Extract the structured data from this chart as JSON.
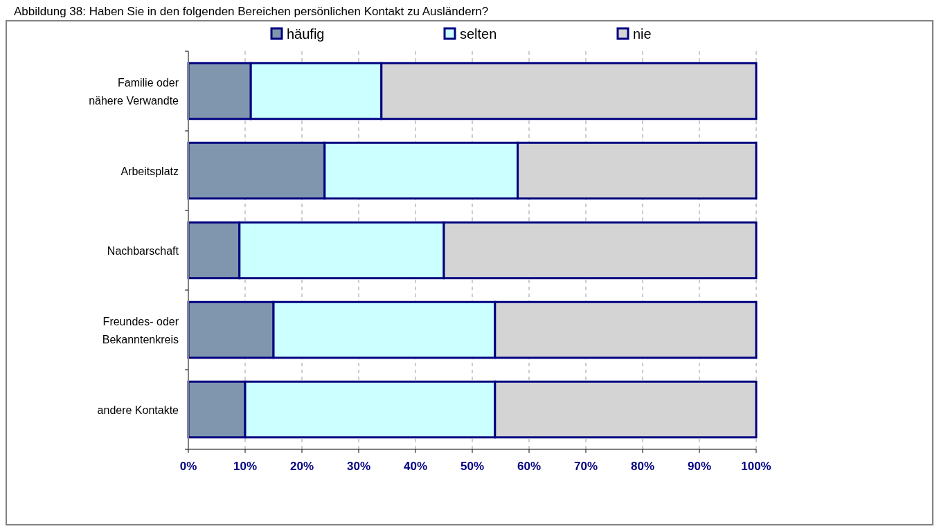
{
  "chart_data": {
    "type": "bar",
    "orientation": "horizontal",
    "stacked": true,
    "title": "Abbildung 38: Haben Sie in den folgenden Bereichen persönlichen Kontakt zu Ausländern?",
    "categories": [
      "Familie oder nähere Verwandte",
      "Arbeitsplatz",
      "Nachbarschaft",
      "Freundes- oder Bekanntenkreis",
      "andere Kontakte"
    ],
    "series": [
      {
        "name": "häufig",
        "color": "#8096ae",
        "values": [
          11,
          24,
          9,
          15,
          10
        ]
      },
      {
        "name": "selten",
        "color": "#ccffff",
        "values": [
          23,
          34,
          36,
          39,
          44
        ]
      },
      {
        "name": "nie",
        "color": "#d4d4d4",
        "values": [
          66,
          42,
          55,
          46,
          46
        ]
      }
    ],
    "xlim": [
      0,
      100
    ],
    "xticks": [
      {
        "value": 0,
        "label": "0%"
      },
      {
        "value": 10,
        "label": "10%"
      },
      {
        "value": 20,
        "label": "20%"
      },
      {
        "value": 30,
        "label": "30%"
      },
      {
        "value": 40,
        "label": "40%"
      },
      {
        "value": 50,
        "label": "50%"
      },
      {
        "value": 60,
        "label": "60%"
      },
      {
        "value": 70,
        "label": "70%"
      },
      {
        "value": 80,
        "label": "80%"
      },
      {
        "value": 90,
        "label": "90%"
      },
      {
        "value": 100,
        "label": "100%"
      }
    ],
    "grid": "x",
    "legend": "top"
  }
}
